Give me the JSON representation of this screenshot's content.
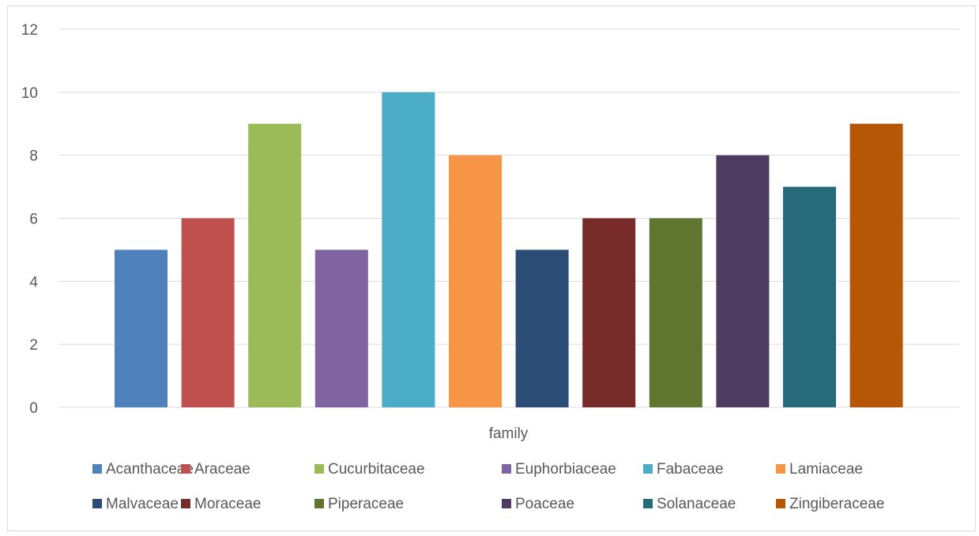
{
  "chart_data": {
    "type": "bar",
    "title": "",
    "xlabel": "family",
    "ylabel": "",
    "ylim": [
      0,
      12
    ],
    "yticks": [
      0,
      2,
      4,
      6,
      8,
      10,
      12
    ],
    "grid": true,
    "legend_position": "bottom",
    "categories": [
      "family"
    ],
    "series": [
      {
        "name": "Acanthaceae",
        "values": [
          5
        ],
        "color": "#4F81BD"
      },
      {
        "name": "Araceae",
        "values": [
          6
        ],
        "color": "#C0504D"
      },
      {
        "name": "Cucurbitaceae",
        "values": [
          9
        ],
        "color": "#9BBB59"
      },
      {
        "name": "Euphorbiaceae",
        "values": [
          5
        ],
        "color": "#8064A2"
      },
      {
        "name": "Fabaceae",
        "values": [
          10
        ],
        "color": "#4BACC6"
      },
      {
        "name": "Lamiaceae",
        "values": [
          8
        ],
        "color": "#F79646"
      },
      {
        "name": "Malvaceae",
        "values": [
          5
        ],
        "color": "#2C4D75"
      },
      {
        "name": "Moraceae",
        "values": [
          6
        ],
        "color": "#772C2A"
      },
      {
        "name": "Piperaceae",
        "values": [
          6
        ],
        "color": "#5F7530"
      },
      {
        "name": "Poaceae",
        "values": [
          8
        ],
        "color": "#4D3B62"
      },
      {
        "name": "Solanaceae",
        "values": [
          7
        ],
        "color": "#276A7C"
      },
      {
        "name": "Zingiberaceae",
        "values": [
          9
        ],
        "color": "#B65708"
      }
    ]
  }
}
